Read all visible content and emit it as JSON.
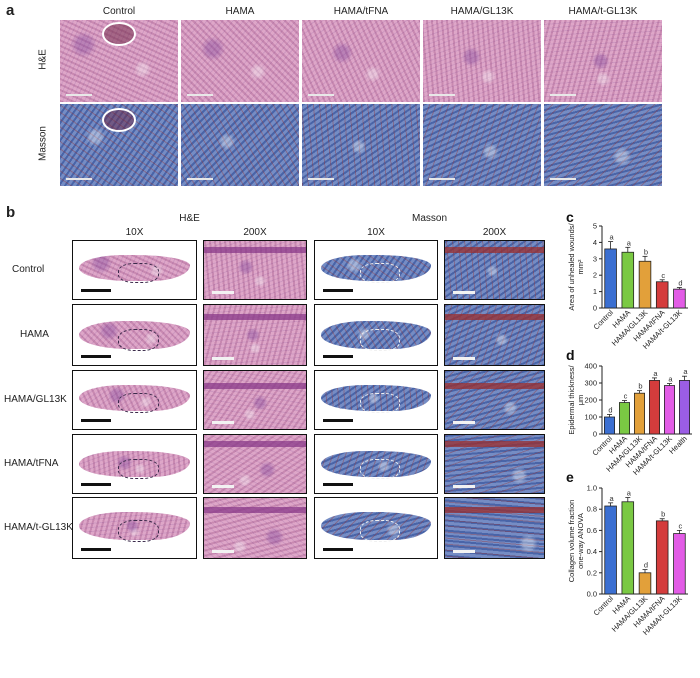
{
  "panel_a": {
    "letter": "a",
    "columns": [
      "Control",
      "HAMA",
      "HAMA/tFNA",
      "HAMA/GL13K",
      "HAMA/t-GL13K"
    ],
    "rows": [
      "H&E",
      "Masson"
    ]
  },
  "panel_b": {
    "letter": "b",
    "groups": [
      "H&E",
      "Masson"
    ],
    "magnifications": [
      "10X",
      "200X",
      "10X",
      "200X"
    ],
    "rows": [
      "Control",
      "HAMA",
      "HAMA/GL13K",
      "HAMA/tFNA",
      "HAMA/t-GL13K"
    ]
  },
  "colors": {
    "he_bg": "#d9a3c4",
    "he_tissue": "#c96fa3",
    "masson_bg": "#6d86bf",
    "masson_deep": "#2a4a92",
    "masson_red": "#9b2d2d",
    "bar_control": "#3b6fd1",
    "bar_hama": "#7ac943",
    "bar_hama_gl13k": "#e2a03a",
    "bar_hama_tfna": "#d43c3c",
    "bar_hama_tgl13k": "#e25ce6",
    "bar_health": "#9b5de5"
  },
  "chart_data": [
    {
      "letter": "c",
      "type": "bar",
      "ylabel_lines": [
        "Area of unhealed wounds/",
        "mm²"
      ],
      "ylim": [
        0,
        5
      ],
      "yticks": [
        "0",
        "1",
        "2",
        "3",
        "4",
        "5"
      ],
      "categories": [
        "Control",
        "HAMA",
        "HAMA/GL13K",
        "HAMA/tFNA",
        "HAMA/t-GL13K"
      ],
      "values": [
        3.6,
        3.4,
        2.85,
        1.6,
        1.15
      ],
      "errors": [
        0.45,
        0.3,
        0.3,
        0.12,
        0.1
      ],
      "letters": [
        "a",
        "a",
        "b",
        "c",
        "d"
      ],
      "bar_colors": [
        "#3b6fd1",
        "#7ac943",
        "#e2a03a",
        "#d43c3c",
        "#e25ce6"
      ]
    },
    {
      "letter": "d",
      "type": "bar",
      "ylabel_lines": [
        "Epidermal thickness/",
        "μm"
      ],
      "ylim": [
        0,
        400
      ],
      "yticks": [
        "0",
        "100",
        "200",
        "300",
        "400"
      ],
      "categories": [
        "Control",
        "HAMA",
        "HAMA/GL13K",
        "HAMA/tFNA",
        "HAMA/t-GL13K",
        "Health"
      ],
      "values": [
        100,
        185,
        240,
        315,
        285,
        315
      ],
      "errors": [
        15,
        12,
        15,
        15,
        12,
        25
      ],
      "letters": [
        "d",
        "c",
        "b",
        "a",
        "a",
        "a"
      ],
      "bar_colors": [
        "#3b6fd1",
        "#7ac943",
        "#e2a03a",
        "#d43c3c",
        "#e25ce6",
        "#9b5de5"
      ]
    },
    {
      "letter": "e",
      "type": "bar",
      "ylabel_lines": [
        "Collagen volume fraction",
        "one-way ANOVA"
      ],
      "ylim": [
        0,
        1.0
      ],
      "yticks": [
        "0.0",
        "0.2",
        "0.4",
        "0.6",
        "0.8",
        "1.0"
      ],
      "categories": [
        "Control",
        "HAMA",
        "HAMA/GL13K",
        "HAMA/tFNA",
        "HAMA/t-GL13K"
      ],
      "values": [
        0.83,
        0.87,
        0.2,
        0.69,
        0.57
      ],
      "errors": [
        0.03,
        0.04,
        0.03,
        0.02,
        0.03
      ],
      "letters": [
        "a",
        "a",
        "d",
        "b",
        "c"
      ],
      "bar_colors": [
        "#3b6fd1",
        "#7ac943",
        "#e2a03a",
        "#d43c3c",
        "#e25ce6"
      ]
    }
  ]
}
